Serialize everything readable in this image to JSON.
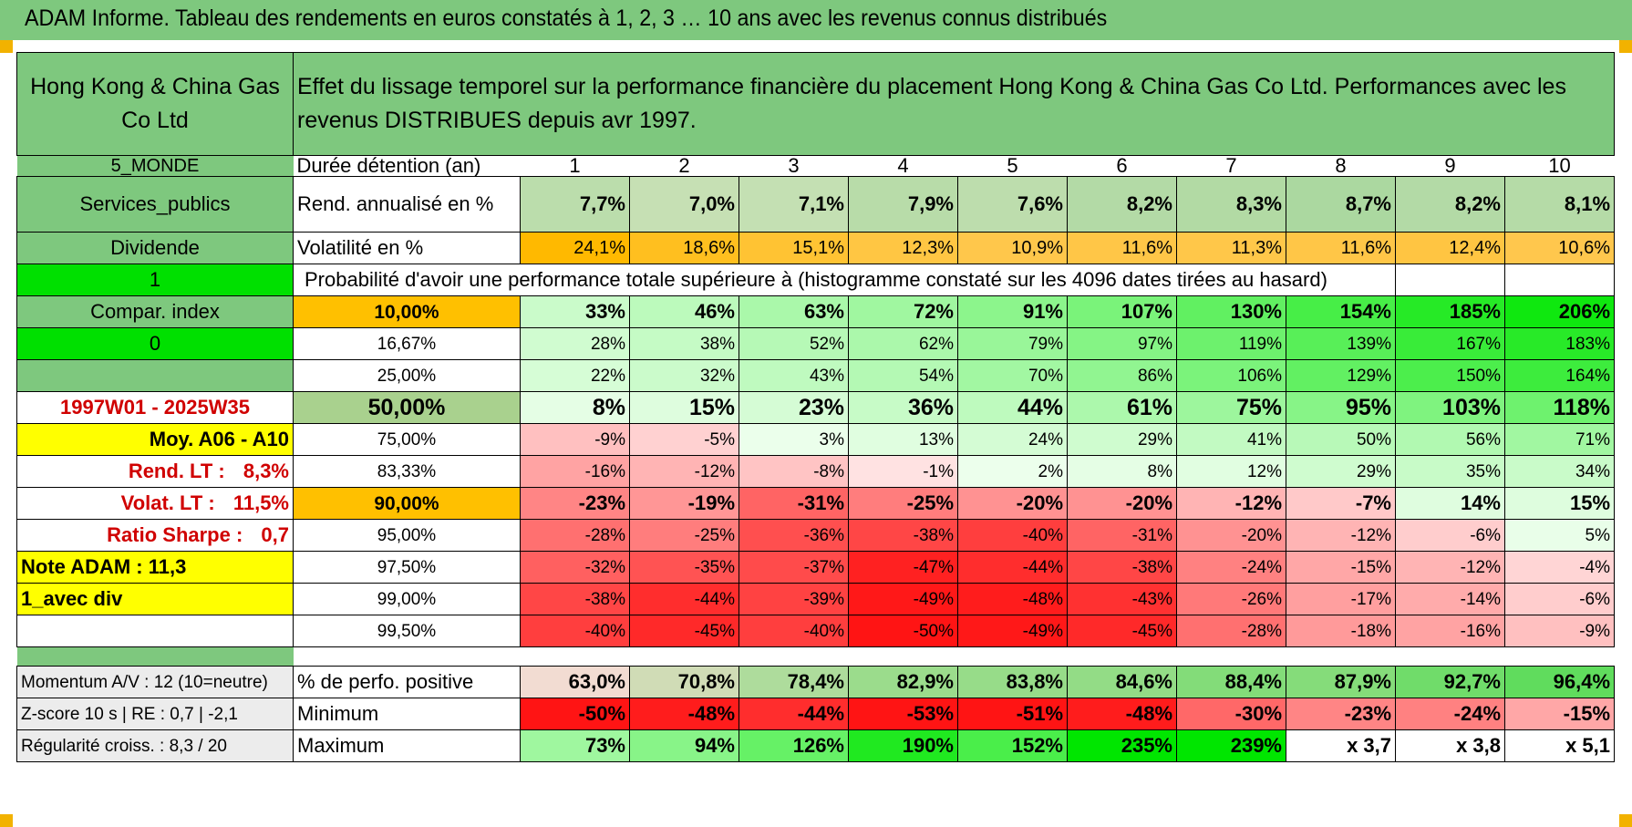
{
  "title": "ADAM Informe. Tableau des rendements en euros constatés à 1, 2, 3 … 10 ans avec les revenus connus distribués",
  "header": {
    "company": "Hong Kong & China Gas Co Ltd",
    "description": "Effet du lissage temporel sur la performance financière du placement Hong Kong & China Gas Co Ltd. Performances avec les revenus DISTRIBUES depuis avr 1997."
  },
  "left_labels": {
    "zone": "5_MONDE",
    "sector": "Services_publics",
    "income_type": "Dividende",
    "flag_1": "1",
    "compar_index": "Compar. index",
    "flag_0": "0",
    "period": "1997W01 - 2025W35",
    "avg": "Moy. A06 - A10",
    "rend_lt_label": "Rend. LT :",
    "rend_lt_value": "8,3%",
    "volat_lt_label": "Volat. LT :",
    "volat_lt_value": "11,5%",
    "sharpe_label": "Ratio Sharpe :",
    "sharpe_value": "0,7",
    "note": "Note ADAM : 11,3",
    "avec_div": "1_avec div"
  },
  "row_labels": {
    "duration": "Durée détention (an)",
    "rend": "Rend. annualisé en %",
    "volat": "Volatilité en %",
    "proba_title": "Probabilité d'avoir une performance totale supérieure à (histogramme constaté sur les 4096 dates tirées au hasard)"
  },
  "years": [
    "1",
    "2",
    "3",
    "4",
    "5",
    "6",
    "7",
    "8",
    "9",
    "10"
  ],
  "rend": [
    "7,7%",
    "7,0%",
    "7,1%",
    "7,9%",
    "7,6%",
    "8,2%",
    "8,3%",
    "8,7%",
    "8,2%",
    "8,1%"
  ],
  "volat": [
    "24,1%",
    "18,6%",
    "15,1%",
    "12,3%",
    "10,9%",
    "11,6%",
    "11,3%",
    "11,6%",
    "12,4%",
    "10,6%"
  ],
  "proba_rows": [
    {
      "pct": "10,00%",
      "values": [
        "33%",
        "46%",
        "63%",
        "72%",
        "91%",
        "107%",
        "130%",
        "154%",
        "185%",
        "206%"
      ]
    },
    {
      "pct": "16,67%",
      "values": [
        "28%",
        "38%",
        "52%",
        "62%",
        "79%",
        "97%",
        "119%",
        "139%",
        "167%",
        "183%"
      ]
    },
    {
      "pct": "25,00%",
      "values": [
        "22%",
        "32%",
        "43%",
        "54%",
        "70%",
        "86%",
        "106%",
        "129%",
        "150%",
        "164%"
      ]
    },
    {
      "pct": "50,00%",
      "values": [
        "8%",
        "15%",
        "23%",
        "36%",
        "44%",
        "61%",
        "75%",
        "95%",
        "103%",
        "118%"
      ]
    },
    {
      "pct": "75,00%",
      "values": [
        "-9%",
        "-5%",
        "3%",
        "13%",
        "24%",
        "29%",
        "41%",
        "50%",
        "56%",
        "71%"
      ]
    },
    {
      "pct": "83,33%",
      "values": [
        "-16%",
        "-12%",
        "-8%",
        "-1%",
        "2%",
        "8%",
        "12%",
        "29%",
        "35%",
        "34%"
      ]
    },
    {
      "pct": "90,00%",
      "values": [
        "-23%",
        "-19%",
        "-31%",
        "-25%",
        "-20%",
        "-20%",
        "-12%",
        "-7%",
        "14%",
        "15%"
      ]
    },
    {
      "pct": "95,00%",
      "values": [
        "-28%",
        "-25%",
        "-36%",
        "-38%",
        "-40%",
        "-31%",
        "-20%",
        "-12%",
        "-6%",
        "5%"
      ]
    },
    {
      "pct": "97,50%",
      "values": [
        "-32%",
        "-35%",
        "-37%",
        "-47%",
        "-44%",
        "-38%",
        "-24%",
        "-15%",
        "-12%",
        "-4%"
      ]
    },
    {
      "pct": "99,00%",
      "values": [
        "-38%",
        "-44%",
        "-39%",
        "-49%",
        "-48%",
        "-43%",
        "-26%",
        "-17%",
        "-14%",
        "-6%"
      ]
    },
    {
      "pct": "99,50%",
      "values": [
        "-40%",
        "-45%",
        "-40%",
        "-50%",
        "-49%",
        "-45%",
        "-28%",
        "-18%",
        "-16%",
        "-9%"
      ]
    }
  ],
  "footer": {
    "momentum": "Momentum A/V : 12 (10=neutre)",
    "zscore": "Z-score 10 s | RE : 0,7 | -2,1",
    "regularite": "Régularité croiss. : 8,3 / 20",
    "positive_label": "% de perfo. positive",
    "minimum_label": "Minimum",
    "maximum_label": "Maximum",
    "positive": [
      "63,0%",
      "70,8%",
      "78,4%",
      "82,9%",
      "83,8%",
      "84,6%",
      "88,4%",
      "87,9%",
      "92,7%",
      "96,4%"
    ],
    "minimum": [
      "-50%",
      "-48%",
      "-44%",
      "-53%",
      "-51%",
      "-48%",
      "-30%",
      "-23%",
      "-24%",
      "-15%"
    ],
    "maximum": [
      "73%",
      "94%",
      "126%",
      "190%",
      "152%",
      "235%",
      "239%",
      "x 3,7",
      "x 3,8",
      "x 5,1"
    ]
  },
  "colors": {
    "header_green": "#7ec87e",
    "bright_green": "#00e000",
    "orange": "#ffc000",
    "yellow": "#ffff00",
    "red_text": "#d00000",
    "light_olive": "#a9d18e"
  }
}
